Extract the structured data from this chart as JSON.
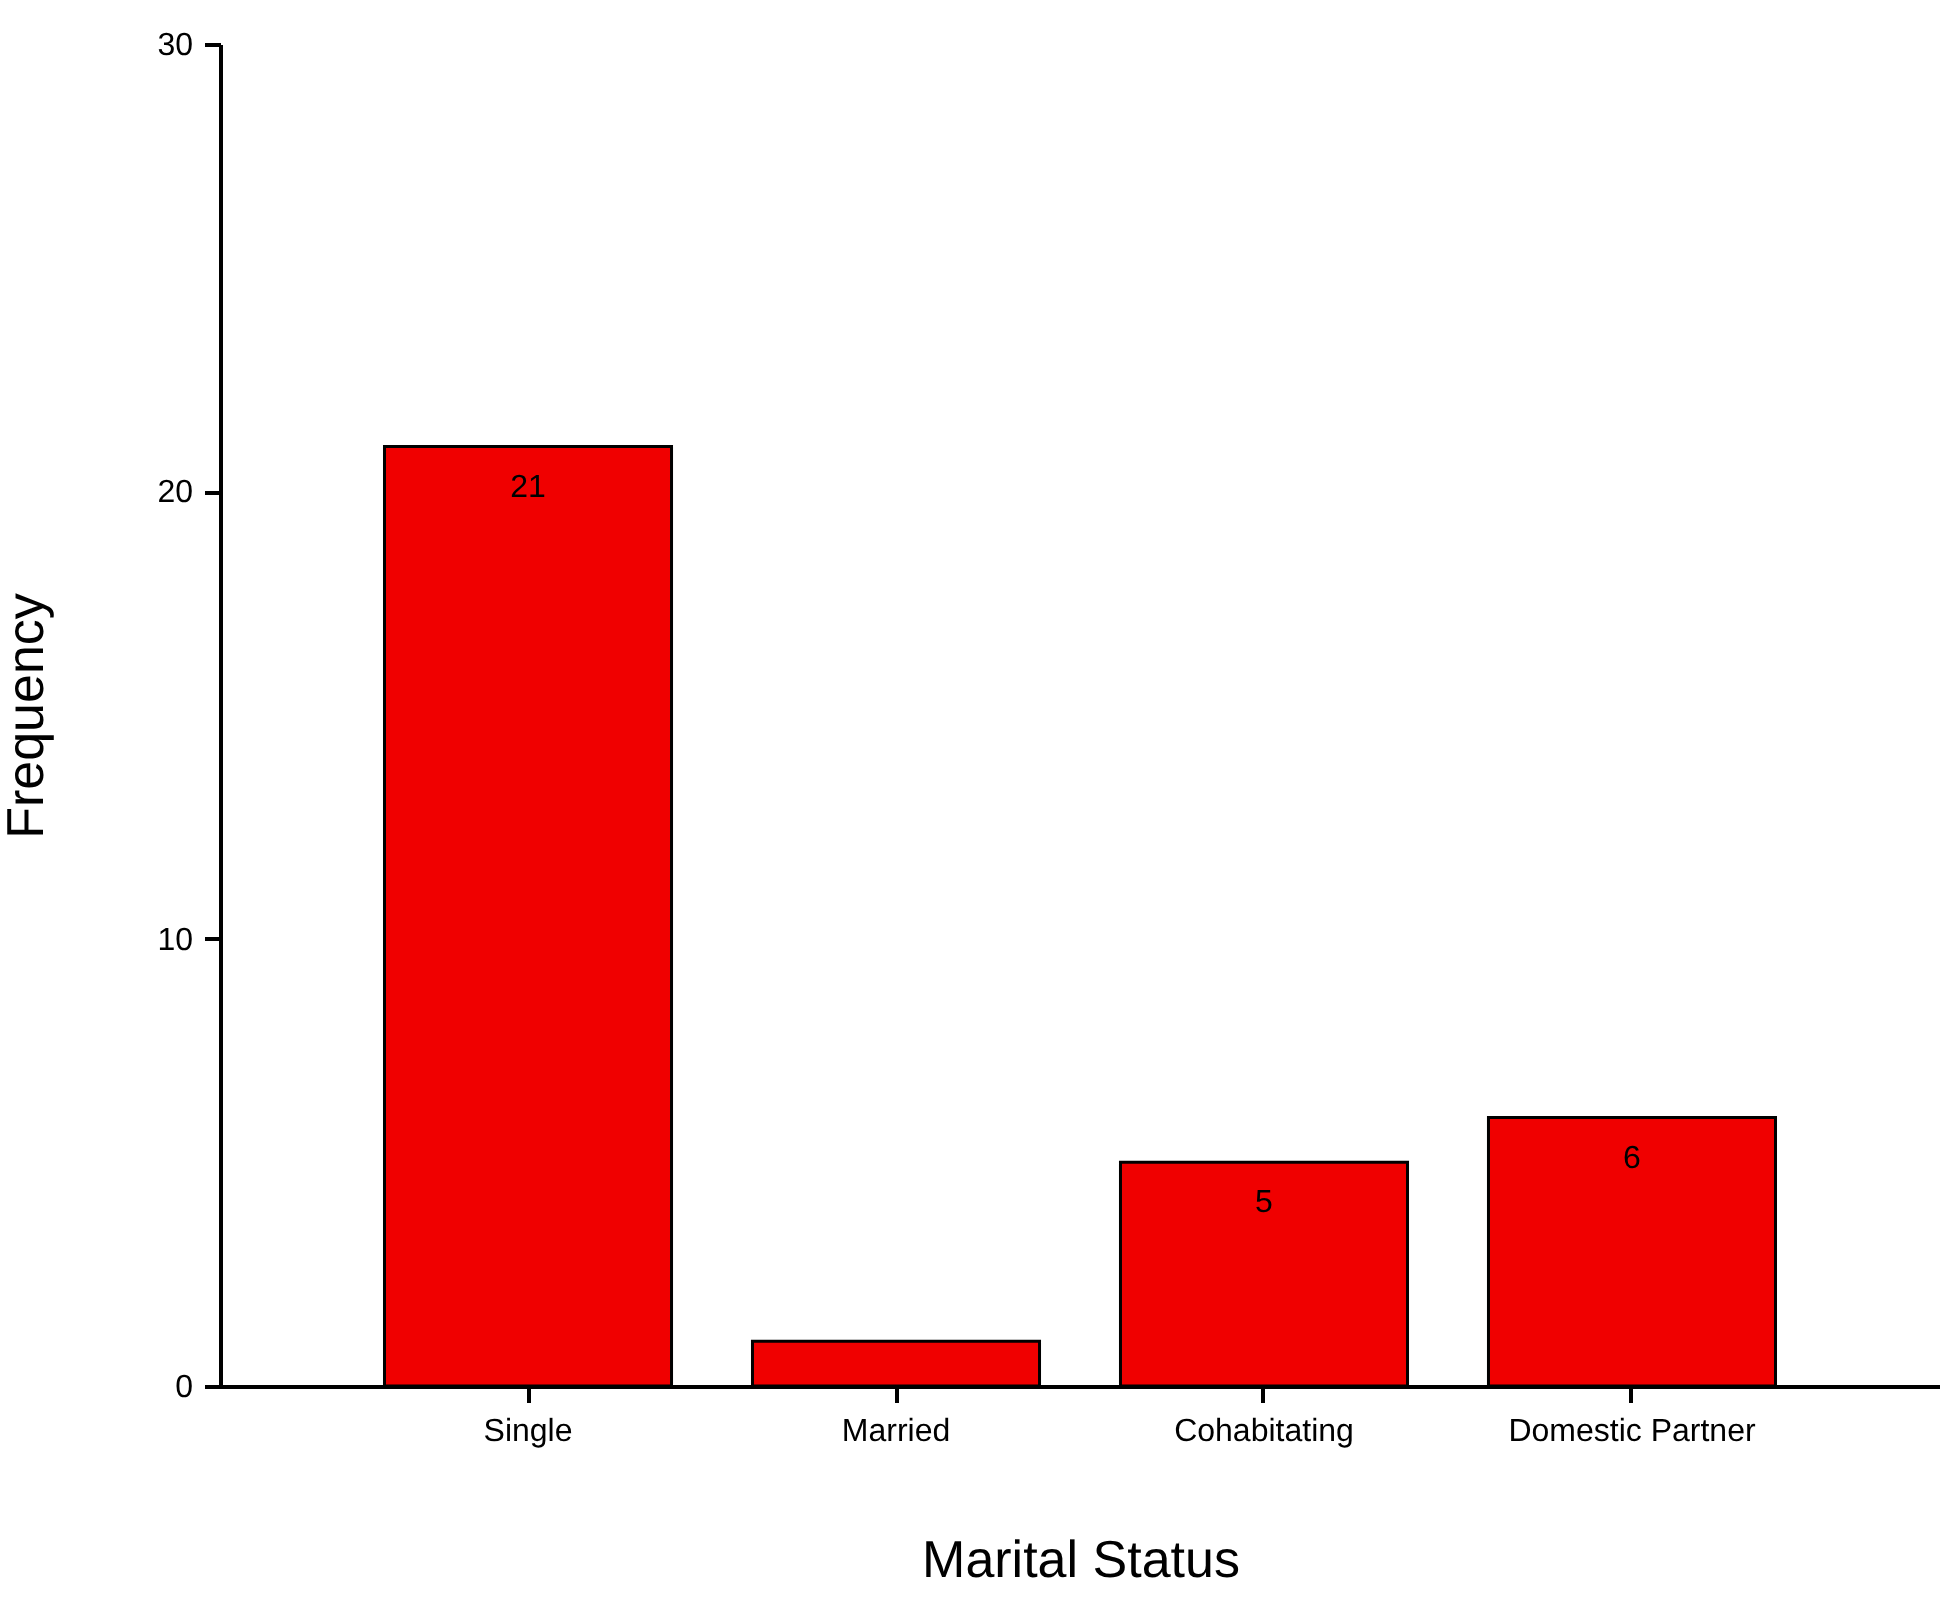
{
  "chart_data": {
    "type": "bar",
    "xlabel": "Marital Status",
    "ylabel": "Frequency",
    "categories": [
      "Single",
      "Married",
      "Cohabitating",
      "Domestic Partner"
    ],
    "values": [
      21,
      1,
      5,
      6
    ],
    "value_labels": [
      "21",
      null,
      "5",
      "6"
    ],
    "color": "#f00000",
    "ylim": [
      0,
      30
    ],
    "yticks": [
      0,
      10,
      20,
      30
    ],
    "grid": false
  }
}
